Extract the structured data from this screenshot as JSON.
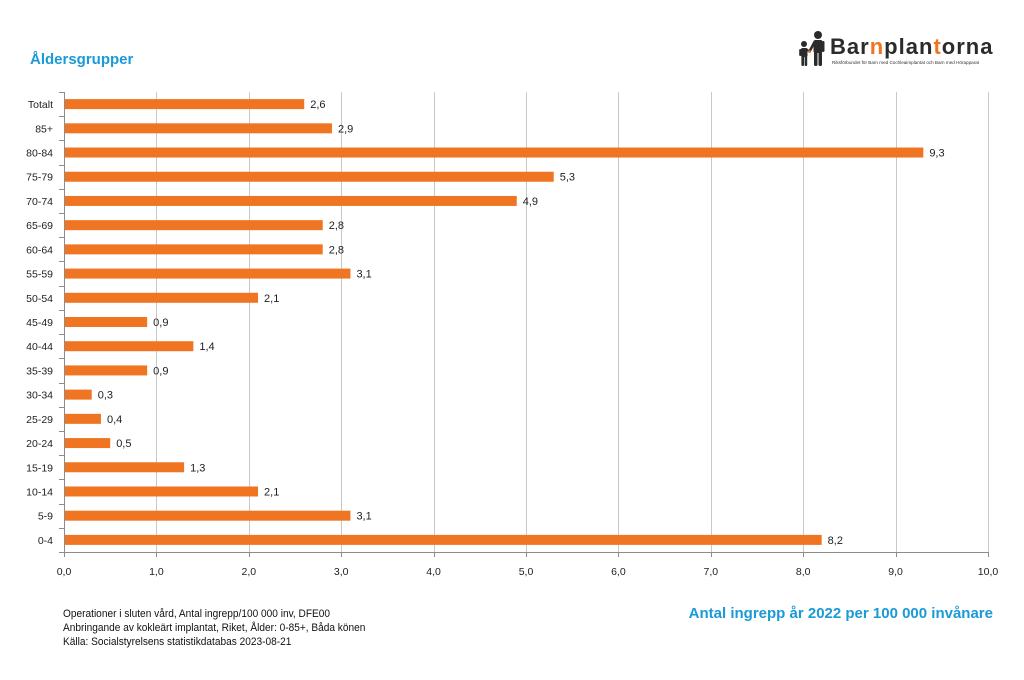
{
  "logo": {
    "name": "Barnplantorna",
    "tagline": "Riksförbundet för Barn med Cochleaimplantat och Barn med Hörapparat",
    "icon": "parent-and-child-silhouette-icon"
  },
  "colors": {
    "accent_blue": "#1A9AD6",
    "bar_orange": "#F07522",
    "gridline": "#C8C8C8",
    "axis": "#8C8C8C",
    "text": "#1E1E1E",
    "logo_dark": "#2B2B2B"
  },
  "chart_data": {
    "type": "bar",
    "orientation": "horizontal",
    "ylabel": "Åldersgrupper",
    "xlabel": "Antal ingrepp år 2022 per 100 000 invånare",
    "categories": [
      "Totalt",
      "85+",
      "80-84",
      "75-79",
      "70-74",
      "65-69",
      "60-64",
      "55-59",
      "50-54",
      "45-49",
      "40-44",
      "35-39",
      "30-34",
      "25-29",
      "20-24",
      "15-19",
      "10-14",
      "5-9",
      "0-4"
    ],
    "values": [
      2.6,
      2.9,
      9.3,
      5.3,
      4.9,
      2.8,
      2.8,
      3.1,
      2.1,
      0.9,
      1.4,
      0.9,
      0.3,
      0.4,
      0.5,
      1.3,
      2.1,
      3.1,
      8.2
    ],
    "data_labels": [
      "2,6",
      "2,9",
      "9,3",
      "5,3",
      "4,9",
      "2,8",
      "2,8",
      "3,1",
      "2,1",
      "0,9",
      "1,4",
      "0,9",
      "0,3",
      "0,4",
      "0,5",
      "1,3",
      "2,1",
      "3,1",
      "8,2"
    ],
    "xlim": [
      0,
      10
    ],
    "xticks": [
      0,
      1,
      2,
      3,
      4,
      5,
      6,
      7,
      8,
      9,
      10
    ],
    "xtick_labels": [
      "0,0",
      "1,0",
      "2,0",
      "3,0",
      "4,0",
      "5,0",
      "6,0",
      "7,0",
      "8,0",
      "9,0",
      "10,0"
    ],
    "grid": true,
    "notes": [
      "Operationer i sluten vård, Antal ingrepp/100 000 inv, DFE00",
      "Anbringande av kokleärt implantat, Riket, Ålder: 0-85+, Båda könen",
      "Källa: Socialstyrelsens statistikdatabas 2023-08-21"
    ]
  }
}
